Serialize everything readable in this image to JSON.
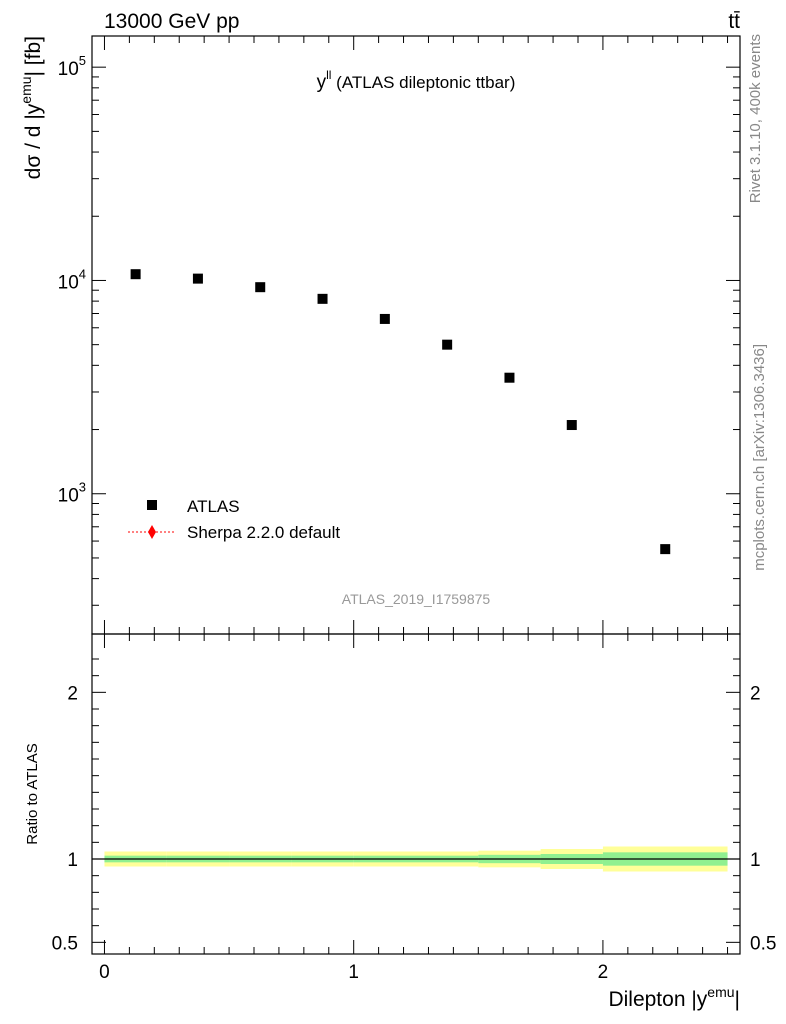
{
  "header": {
    "energy_label": "13000 GeV pp",
    "process_label": "tt̄"
  },
  "side_labels": {
    "rivet": "Rivet 3.1.10,  400k events",
    "mcplots": "mcplots.cern.ch [arXiv:1306.3436]"
  },
  "watermark": "ATLAS_2019_I1759875",
  "chart_data": [
    {
      "type": "scatter",
      "title_main": "y",
      "title_sup": "ll",
      "title_rest": " (ATLAS dileptonic ttbar)",
      "ylabel": "dσ / d |yemu| [fb]",
      "ylabel_main": "dσ / d |y",
      "ylabel_sup": "emu",
      "ylabel_end": "| [fb]",
      "yscale": "log",
      "ylim": [
        220,
        140000
      ],
      "xlim": [
        -0.05,
        2.55
      ],
      "y_tick_labels": [
        {
          "value": 1000,
          "base": "10",
          "exp": "3"
        },
        {
          "value": 10000,
          "base": "10",
          "exp": "4"
        },
        {
          "value": 100000,
          "base": "10",
          "exp": "5"
        }
      ],
      "legend_position": "bottom-left",
      "series": [
        {
          "name": "ATLAS",
          "marker": "square",
          "color": "#000000",
          "x": [
            0.125,
            0.375,
            0.625,
            0.875,
            1.125,
            1.375,
            1.625,
            1.875,
            2.25
          ],
          "y": [
            10700,
            10200,
            9300,
            8200,
            6600,
            5000,
            3500,
            2100,
            550
          ]
        },
        {
          "name": "Sherpa 2.2.0 default",
          "marker": "diamond",
          "line": "dotted",
          "color": "#ff0000",
          "x": [],
          "y": []
        }
      ]
    },
    {
      "type": "area",
      "ylabel": "Ratio to ATLAS",
      "xlabel": "Dilepton |yemu|",
      "xlabel_main": "Dilepton |y",
      "xlabel_sup": "emu",
      "xlabel_end": "|",
      "ylim": [
        0.43,
        2.35
      ],
      "xlim": [
        -0.05,
        2.55
      ],
      "x_ticks": [
        "0",
        "1",
        "2"
      ],
      "y_ticks": [
        "0.5",
        "1",
        "2"
      ],
      "reference_line": 1,
      "bins": [
        {
          "x0": 0.0,
          "x1": 0.25,
          "stat": [
            0.98,
            1.02
          ],
          "total": [
            0.955,
            1.045
          ]
        },
        {
          "x0": 0.25,
          "x1": 0.5,
          "stat": [
            0.98,
            1.02
          ],
          "total": [
            0.955,
            1.045
          ]
        },
        {
          "x0": 0.5,
          "x1": 0.75,
          "stat": [
            0.98,
            1.02
          ],
          "total": [
            0.955,
            1.045
          ]
        },
        {
          "x0": 0.75,
          "x1": 1.0,
          "stat": [
            0.98,
            1.02
          ],
          "total": [
            0.955,
            1.045
          ]
        },
        {
          "x0": 1.0,
          "x1": 1.25,
          "stat": [
            0.98,
            1.02
          ],
          "total": [
            0.955,
            1.045
          ]
        },
        {
          "x0": 1.25,
          "x1": 1.5,
          "stat": [
            0.98,
            1.02
          ],
          "total": [
            0.955,
            1.045
          ]
        },
        {
          "x0": 1.5,
          "x1": 1.75,
          "stat": [
            0.975,
            1.025
          ],
          "total": [
            0.95,
            1.05
          ]
        },
        {
          "x0": 1.75,
          "x1": 2.0,
          "stat": [
            0.97,
            1.03
          ],
          "total": [
            0.94,
            1.06
          ]
        },
        {
          "x0": 2.0,
          "x1": 2.5,
          "stat": [
            0.96,
            1.04
          ],
          "total": [
            0.925,
            1.075
          ]
        }
      ],
      "colors": {
        "stat": "#90f090",
        "total": "#ffff99"
      }
    }
  ]
}
